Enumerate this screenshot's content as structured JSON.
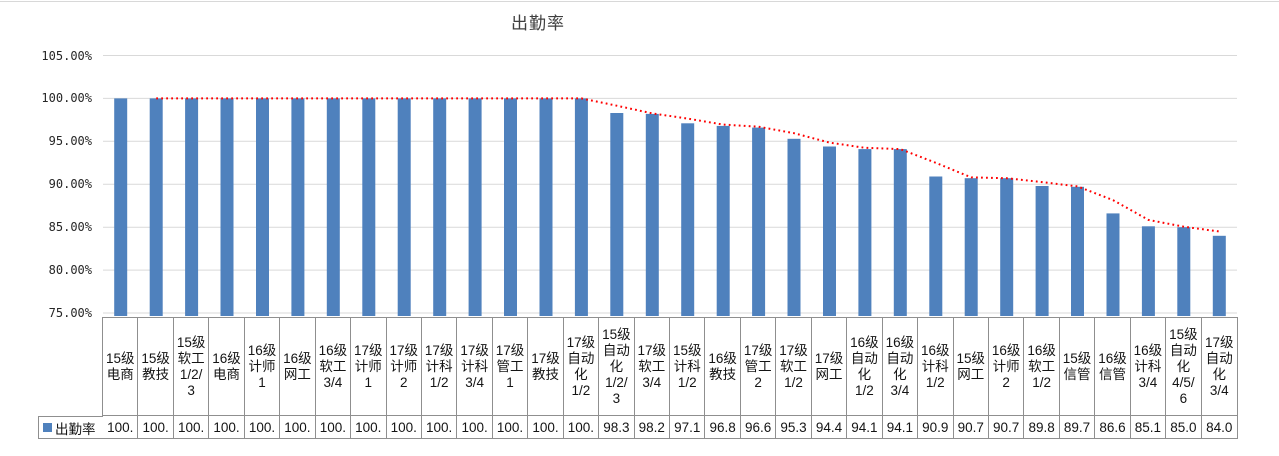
{
  "title": "出勤率",
  "legend": {
    "label": "出勤率",
    "marker_color": "#4F81BD"
  },
  "colors": {
    "bar": "#4F81BD",
    "trendline": "#FF0000",
    "gridline": "#D9D9D9",
    "table_border": "#8F8F8F",
    "text": "#141414"
  },
  "chart_data": {
    "type": "bar",
    "title": "出勤率",
    "categories": [
      "15级电商",
      "15级教技",
      "15级软工1/2/3",
      "16级电商",
      "16级计师1",
      "16级网工",
      "16级软工3/4",
      "17级计师1",
      "17级计师2",
      "17级计科1/2",
      "17级计科3/4",
      "17级管工1",
      "17级教技",
      "17级自动化1/2",
      "15级自动化1/2/3",
      "17级软工3/4",
      "15级计科1/2",
      "16级教技",
      "17级管工2",
      "17级软工1/2",
      "17级网工",
      "16级自动化1/2",
      "16级自动化3/4",
      "16级计科1/2",
      "15级网工",
      "16级计师2",
      "16级软工1/2",
      "15级信管",
      "16级信管",
      "16级计科3/4",
      "15级自动化4/5/6",
      "17级自动化3/4"
    ],
    "category_lines": [
      "15级\n电商",
      "15级\n教技",
      "15级\n软工\n1/2/\n3",
      "16级\n电商",
      "16级\n计师\n1",
      "16级\n网工",
      "16级\n软工\n3/4",
      "17级\n计师\n1",
      "17级\n计师\n2",
      "17级\n计科\n1/2",
      "17级\n计科\n3/4",
      "17级\n管工\n1",
      "17级\n教技",
      "17级\n自动\n化\n1/2",
      "15级\n自动\n化\n1/2/\n3",
      "17级\n软工\n3/4",
      "15级\n计科\n1/2",
      "16级\n教技",
      "17级\n管工\n2",
      "17级\n软工\n1/2",
      "17级\n网工",
      "16级\n自动\n化\n1/2",
      "16级\n自动\n化\n3/4",
      "16级\n计科\n1/2",
      "15级\n网工",
      "16级\n计师\n2",
      "16级\n软工\n1/2",
      "15级\n信管",
      "16级\n信管",
      "16级\n计科\n3/4",
      "15级\n自动\n化\n4/5/\n6",
      "17级\n自动\n化\n3/4"
    ],
    "series": [
      {
        "name": "出勤率",
        "values": [
          100,
          100,
          100,
          100,
          100,
          100,
          100,
          100,
          100,
          100,
          100,
          100,
          100,
          100,
          98.3,
          98.2,
          97.1,
          96.8,
          96.6,
          95.3,
          94.4,
          94.1,
          94.1,
          90.9,
          90.7,
          90.7,
          89.8,
          89.7,
          86.6,
          85.1,
          85.0,
          84.0
        ]
      }
    ],
    "value_labels": [
      "100.",
      "100.",
      "100.",
      "100.",
      "100.",
      "100.",
      "100.",
      "100.",
      "100.",
      "100.",
      "100.",
      "100.",
      "100.",
      "100.",
      "98.3",
      "98.2",
      "97.1",
      "96.8",
      "96.6",
      "95.3",
      "94.4",
      "94.1",
      "94.1",
      "90.9",
      "90.7",
      "90.7",
      "89.8",
      "89.7",
      "86.6",
      "85.1",
      "85.0",
      "84.0"
    ],
    "yticks": [
      "105.00%",
      "100.00%",
      "95.00%",
      "90.00%",
      "85.00%",
      "80.00%",
      "75.00%"
    ],
    "ytick_values": [
      105,
      100,
      95,
      90,
      85,
      80,
      75
    ],
    "ylim": [
      75,
      105
    ],
    "grid": true,
    "trendline": {
      "type": "moving_average",
      "period": 2,
      "style": "dotted",
      "color": "#FF0000"
    },
    "legend_position": "bottom-left-of-data-table"
  }
}
